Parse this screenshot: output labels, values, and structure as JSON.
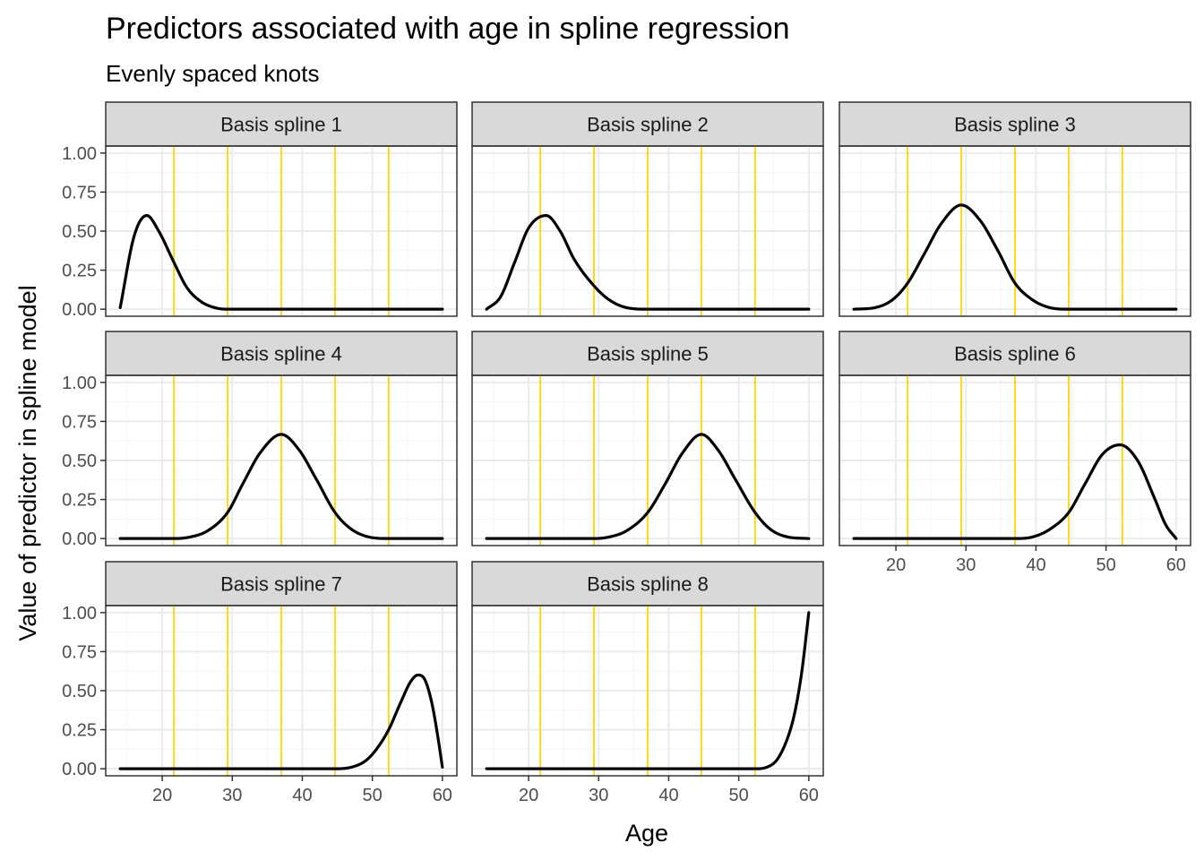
{
  "chart_data": {
    "type": "line",
    "title": "Predictors associated with age in spline regression",
    "subtitle": "Evenly spaced knots",
    "xlabel": "Age",
    "ylabel": "Value of predictor in spline model",
    "xlim": [
      14,
      60
    ],
    "ylim": [
      0,
      1
    ],
    "x_ticks": [
      20,
      30,
      40,
      50,
      60
    ],
    "y_ticks": [
      0,
      0.25,
      0.5,
      0.75,
      1
    ],
    "y_tick_labels": [
      "0.00",
      "0.25",
      "0.50",
      "0.75",
      "1.00"
    ],
    "grid": true,
    "knots": [
      21.67,
      29.33,
      37.0,
      44.67,
      52.33
    ],
    "colors": {
      "line": "#000000",
      "knot": "#FFD700",
      "strip_fill": "#D9D9D9",
      "grid_major": "#EBEBEB",
      "grid_minor": "#F5F5F5",
      "panel_border": "#333333"
    },
    "panels": [
      {
        "label": "Basis spline 1",
        "x": [
          14,
          16,
          17.8,
          19.5,
          21.67,
          23.5,
          25.5,
          27.5,
          29.33,
          35,
          40,
          50,
          60
        ],
        "y": [
          0.01,
          0.47,
          0.6,
          0.5,
          0.3,
          0.14,
          0.05,
          0.01,
          0.0,
          0.0,
          0.0,
          0.0,
          0.0
        ]
      },
      {
        "label": "Basis spline 2",
        "x": [
          14,
          16,
          18,
          20,
          22.5,
          24.5,
          26.5,
          29.33,
          31.5,
          34,
          37,
          45,
          60
        ],
        "y": [
          0.0,
          0.08,
          0.3,
          0.52,
          0.6,
          0.5,
          0.32,
          0.15,
          0.06,
          0.01,
          0.0,
          0.0,
          0.0
        ]
      },
      {
        "label": "Basis spline 3",
        "x": [
          14,
          17,
          19.5,
          21.67,
          24,
          26.5,
          29.33,
          32,
          34.5,
          37,
          39.5,
          42,
          44.67,
          50,
          60
        ],
        "y": [
          0.0,
          0.01,
          0.06,
          0.167,
          0.35,
          0.55,
          0.667,
          0.57,
          0.38,
          0.167,
          0.06,
          0.01,
          0.0,
          0.0,
          0.0
        ]
      },
      {
        "label": "Basis spline 4",
        "x": [
          14,
          21.67,
          24,
          26.5,
          29.33,
          31.5,
          34,
          37,
          39.5,
          42,
          44.67,
          47,
          49.5,
          52.33,
          60
        ],
        "y": [
          0.0,
          0.0,
          0.01,
          0.05,
          0.167,
          0.35,
          0.55,
          0.667,
          0.57,
          0.38,
          0.167,
          0.06,
          0.01,
          0.0,
          0.0
        ]
      },
      {
        "label": "Basis spline 5",
        "x": [
          14,
          29.33,
          31.5,
          34,
          37,
          39.5,
          42,
          44.67,
          47,
          49.5,
          52.33,
          54.5,
          57,
          60
        ],
        "y": [
          0.0,
          0.0,
          0.01,
          0.05,
          0.167,
          0.35,
          0.55,
          0.667,
          0.57,
          0.38,
          0.167,
          0.06,
          0.01,
          0.0
        ]
      },
      {
        "label": "Basis spline 6",
        "x": [
          14,
          37,
          39.5,
          42,
          44.67,
          47,
          49.5,
          52,
          54.5,
          57,
          58.5,
          60
        ],
        "y": [
          0.0,
          0.0,
          0.01,
          0.06,
          0.167,
          0.35,
          0.54,
          0.6,
          0.5,
          0.25,
          0.09,
          0.0
        ]
      },
      {
        "label": "Basis spline 7",
        "x": [
          14,
          44.67,
          47,
          49,
          50.5,
          52.33,
          54,
          55.5,
          56.5,
          57.5,
          58.5,
          59.3,
          60
        ],
        "y": [
          0.0,
          0.0,
          0.01,
          0.05,
          0.12,
          0.25,
          0.42,
          0.56,
          0.6,
          0.57,
          0.42,
          0.22,
          0.01
        ]
      },
      {
        "label": "Basis spline 8",
        "x": [
          14,
          52.33,
          54,
          55.5,
          57,
          58,
          59,
          60
        ],
        "y": [
          0.0,
          0.0,
          0.01,
          0.06,
          0.2,
          0.36,
          0.62,
          1.0
        ]
      }
    ]
  }
}
